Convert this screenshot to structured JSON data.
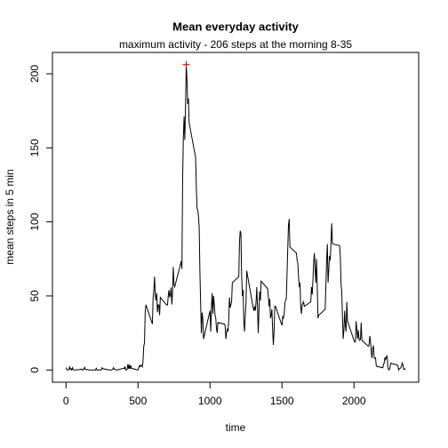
{
  "chart_data": {
    "type": "line",
    "title": "Mean everyday activity",
    "subtitle": "maximum activity - 206 steps at the morning 8-35",
    "x_label": "time",
    "y_label": "mean steps in 5 min",
    "x": [
      0,
      5,
      10,
      15,
      20,
      25,
      30,
      35,
      40,
      45,
      50,
      55,
      100,
      105,
      110,
      115,
      120,
      125,
      130,
      135,
      140,
      145,
      150,
      155,
      200,
      205,
      210,
      215,
      220,
      225,
      230,
      235,
      240,
      245,
      250,
      255,
      300,
      305,
      310,
      315,
      320,
      325,
      330,
      335,
      340,
      345,
      350,
      355,
      400,
      405,
      410,
      415,
      420,
      425,
      430,
      435,
      440,
      445,
      450,
      455,
      500,
      505,
      510,
      515,
      520,
      525,
      530,
      535,
      540,
      545,
      550,
      555,
      600,
      605,
      610,
      615,
      620,
      625,
      630,
      635,
      640,
      645,
      650,
      655,
      700,
      705,
      710,
      715,
      720,
      725,
      730,
      735,
      740,
      745,
      750,
      755,
      800,
      805,
      810,
      815,
      820,
      825,
      830,
      835,
      840,
      845,
      850,
      855,
      900,
      905,
      910,
      915,
      920,
      925,
      930,
      935,
      940,
      945,
      950,
      955,
      1000,
      1005,
      1010,
      1015,
      1020,
      1025,
      1030,
      1035,
      1040,
      1045,
      1050,
      1055,
      1100,
      1105,
      1110,
      1115,
      1120,
      1125,
      1130,
      1135,
      1140,
      1145,
      1150,
      1155,
      1200,
      1205,
      1210,
      1215,
      1220,
      1225,
      1230,
      1235,
      1240,
      1245,
      1250,
      1255,
      1300,
      1305,
      1310,
      1315,
      1320,
      1325,
      1330,
      1335,
      1340,
      1345,
      1350,
      1355,
      1400,
      1405,
      1410,
      1415,
      1420,
      1425,
      1430,
      1435,
      1440,
      1445,
      1450,
      1455,
      1500,
      1505,
      1510,
      1515,
      1520,
      1525,
      1530,
      1535,
      1540,
      1545,
      1550,
      1555,
      1600,
      1605,
      1610,
      1615,
      1620,
      1625,
      1630,
      1635,
      1640,
      1645,
      1650,
      1655,
      1700,
      1705,
      1710,
      1715,
      1720,
      1725,
      1730,
      1735,
      1740,
      1745,
      1750,
      1755,
      1800,
      1805,
      1810,
      1815,
      1820,
      1825,
      1830,
      1835,
      1840,
      1845,
      1850,
      1855,
      1900,
      1905,
      1910,
      1915,
      1920,
      1925,
      1930,
      1935,
      1940,
      1945,
      1950,
      1955,
      2000,
      2005,
      2010,
      2015,
      2020,
      2025,
      2030,
      2035,
      2040,
      2045,
      2050,
      2055,
      2100,
      2105,
      2110,
      2115,
      2120,
      2125,
      2130,
      2135,
      2140,
      2145,
      2150,
      2155,
      2200,
      2205,
      2210,
      2215,
      2220,
      2225,
      2230,
      2235,
      2240,
      2245,
      2250,
      2255,
      2300,
      2305,
      2310,
      2315,
      2320,
      2325,
      2330,
      2335,
      2340,
      2345,
      2350,
      2355
    ],
    "series": [
      {
        "name": "mean steps",
        "color": "#000000",
        "values": [
          1.7,
          0.3,
          0.1,
          0.2,
          0.1,
          2.1,
          0.5,
          0.9,
          0,
          1.5,
          0.3,
          0,
          0.3,
          0.7,
          0.2,
          0.3,
          0,
          1.1,
          1.8,
          0.2,
          0.2,
          0.4,
          0.3,
          0,
          0,
          0,
          1.1,
          0,
          0,
          0.1,
          0,
          0.2,
          0,
          0,
          1.5,
          0.9,
          0,
          0,
          0,
          0,
          0.2,
          0.6,
          1.6,
          0.6,
          0.5,
          0.1,
          0,
          0,
          1.2,
          0.9,
          2.5,
          0,
          0.3,
          0.4,
          4.1,
          0.7,
          3.5,
          0.8,
          3.1,
          1.1,
          0,
          1.6,
          3.0,
          2.2,
          3.3,
          3.0,
          2.1,
          6.1,
          16,
          18.3,
          39,
          44,
          31,
          49,
          53.8,
          63,
          50,
          47,
          52,
          39,
          44,
          44,
          37,
          49,
          43.8,
          44,
          50,
          54,
          49,
          50.9,
          55.7,
          44.3,
          52.3,
          69.5,
          57.8,
          56.2,
          73.4,
          68.2,
          129.4,
          157.5,
          171.2,
          155.4,
          177.3,
          206.2,
          195.9,
          179.6,
          183.4,
          167,
          143.5,
          124,
          109.1,
          108.1,
          103.7,
          95.9,
          66.2,
          45.2,
          24.8,
          38.8,
          35,
          21,
          40,
          26,
          42,
          52,
          38,
          50,
          44,
          37,
          35,
          28,
          25,
          32,
          31,
          30,
          21,
          25,
          28,
          26,
          33,
          49,
          42,
          44,
          46,
          59,
          63,
          87,
          94,
          92,
          63,
          50,
          54,
          32,
          26,
          37,
          45,
          67,
          42,
          40,
          43,
          40,
          46,
          56,
          42,
          25,
          40,
          53,
          47,
          60,
          55,
          50,
          43,
          48,
          35,
          37,
          41,
          27,
          17,
          26,
          43,
          43,
          30,
          36,
          35,
          38,
          45,
          47,
          48,
          65,
          82,
          98,
          102,
          83,
          79,
          74,
          72,
          63,
          56,
          59,
          43,
          38,
          44,
          45,
          46,
          43,
          46,
          56,
          51,
          61,
          73,
          79,
          68,
          59,
          75,
          56,
          35,
          37,
          41,
          58,
          74,
          85,
          59,
          68,
          77,
          74,
          85,
          99,
          86,
          85,
          84,
          77,
          58,
          53,
          36,
          21,
          27,
          40,
          30,
          26,
          46,
          33,
          20,
          19,
          19,
          33,
          27,
          21,
          27,
          21,
          20,
          21,
          32,
          20,
          16,
          17,
          23,
          19,
          12,
          8,
          15,
          16,
          8.7,
          7.8,
          8.1,
          2.6,
          1.5,
          3.7,
          4.8,
          8.5,
          7.1,
          8.7,
          9.8,
          2.2,
          0.3,
          0.1,
          1.6,
          4.6,
          3.3,
          2.8,
          0,
          0.8,
          1,
          1.6,
          2.6,
          4.7,
          3.3,
          0.6,
          0.2,
          1.1
        ]
      }
    ],
    "highlight": {
      "x": 835,
      "y": 206.2,
      "color": "#ff0000"
    },
    "xlim": [
      -94.2,
      2449.2
    ],
    "xticks": [
      0,
      500,
      1000,
      1500,
      2000
    ],
    "ylim": [
      -8.25,
      214.4
    ],
    "yticks": [
      0,
      50,
      100,
      150,
      200
    ],
    "grid": false
  }
}
